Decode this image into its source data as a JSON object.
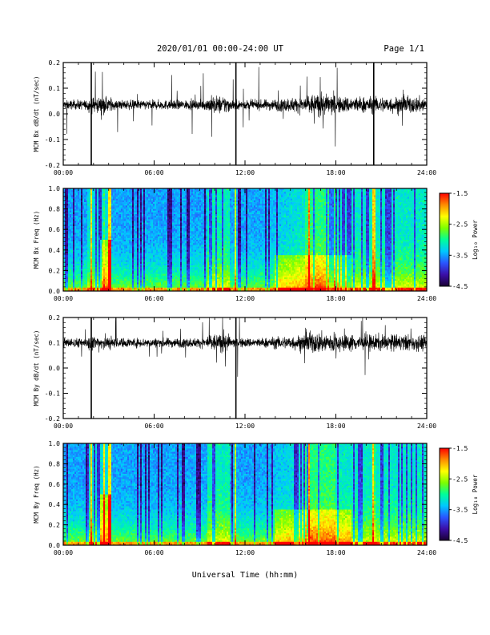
{
  "header": {
    "title": "2020/01/01  00:00-24:00 UT",
    "page": "Page 1/1"
  },
  "xlabel": "Universal Time (hh:mm)",
  "colors": {
    "trace": "#000000",
    "colormap": [
      "#1a0033",
      "#3b0fa8",
      "#2a55ff",
      "#00c8ff",
      "#00ff9a",
      "#7dff00",
      "#ffff00",
      "#ff8c00",
      "#ff0000"
    ]
  },
  "chart_data": [
    {
      "type": "line",
      "ylabel": "MCM Bx dB/dt (nT/sec)",
      "xlim": [
        0,
        24
      ],
      "ylim": [
        -0.2,
        0.2
      ],
      "xticks": [
        "00:00",
        "06:00",
        "12:00",
        "18:00",
        "24:00"
      ],
      "yticks": [
        "0.2",
        "0.1",
        "0.0",
        "-0.1",
        "-0.2"
      ],
      "baseline": 0.035,
      "spikes_hours": [
        1.85,
        11.4,
        20.5
      ]
    },
    {
      "type": "heatmap",
      "ylabel": "MCM Bx Freq (Hz)",
      "xlim": [
        0,
        24
      ],
      "ylim": [
        0,
        1.0
      ],
      "xticks": [
        "00:00",
        "06:00",
        "12:00",
        "18:00",
        "24:00"
      ],
      "yticks": [
        "1.0",
        "0.8",
        "0.6",
        "0.4",
        "0.2",
        "0.0"
      ],
      "colorbar": {
        "label": "Log₁₀ Power",
        "range": [
          -4.5,
          -1.5
        ],
        "ticks": [
          "-1.5",
          "-2.5",
          "-3.5",
          "-4.5"
        ]
      }
    },
    {
      "type": "line",
      "ylabel": "MCM By dB/dt (nT/sec)",
      "xlim": [
        0,
        24
      ],
      "ylim": [
        -0.2,
        0.2
      ],
      "xticks": [
        "00:00",
        "06:00",
        "12:00",
        "18:00",
        "24:00"
      ],
      "yticks": [
        "0.2",
        "0.1",
        "0.0",
        "-0.1",
        "-0.2"
      ],
      "baseline": 0.1,
      "spikes_hours": [
        1.85,
        11.4
      ]
    },
    {
      "type": "heatmap",
      "ylabel": "MCM By Freq (Hz)",
      "xlim": [
        0,
        24
      ],
      "ylim": [
        0,
        1.0
      ],
      "xticks": [
        "00:00",
        "06:00",
        "12:00",
        "18:00",
        "24:00"
      ],
      "yticks": [
        "1.0",
        "0.8",
        "0.6",
        "0.4",
        "0.2",
        "0.0"
      ],
      "colorbar": {
        "label": "Log₁₀ Power",
        "range": [
          -4.5,
          -1.5
        ],
        "ticks": [
          "-1.5",
          "-2.5",
          "-3.5",
          "-4.5"
        ]
      }
    }
  ]
}
